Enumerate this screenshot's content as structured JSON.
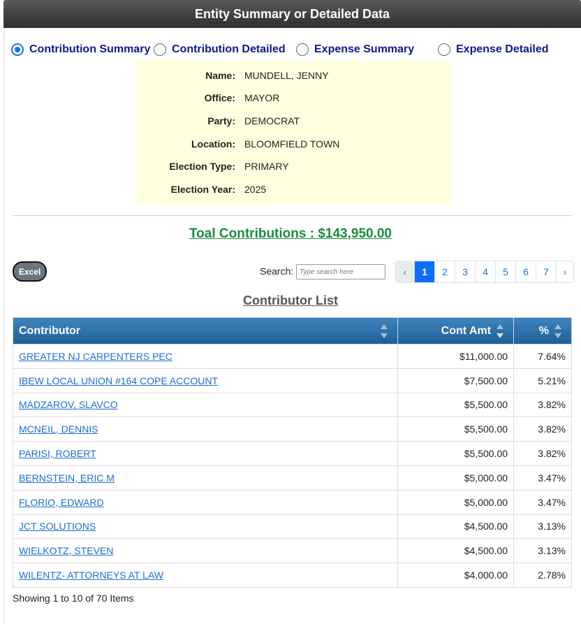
{
  "header": {
    "title": "Entity Summary or Detailed Data"
  },
  "report_types": [
    {
      "label": "Contribution Summary",
      "checked": true
    },
    {
      "label": "Contribution Detailed",
      "checked": false
    },
    {
      "label": "Expense Summary",
      "checked": false
    },
    {
      "label": "Expense Detailed",
      "checked": false
    }
  ],
  "entity": {
    "name_label": "Name:",
    "name": "MUNDELL, JENNY",
    "office_label": "Office:",
    "office": "MAYOR",
    "party_label": "Party:",
    "party": "DEMOCRAT",
    "location_label": "Location:",
    "location": "BLOOMFIELD TOWN",
    "election_type_label": "Election Type:",
    "election_type": "PRIMARY",
    "election_year_label": "Election Year:",
    "election_year": "2025"
  },
  "total": {
    "text": "Toal Contributions : $143,950.00"
  },
  "toolbar": {
    "excel_label": "Excel",
    "search_label": "Search:",
    "search_placeholder": "Type search here",
    "search_value": ""
  },
  "pagination": {
    "prev": "‹",
    "next": "›",
    "pages": [
      "1",
      "2",
      "3",
      "4",
      "5",
      "6",
      "7"
    ],
    "active": "1"
  },
  "list_title": "Contributor List",
  "table": {
    "columns": [
      "Contributor",
      "Cont Amt",
      "%"
    ],
    "rows": [
      {
        "contributor": "GREATER NJ CARPENTERS PEC",
        "amount": "$11,000.00",
        "pct": "7.64%"
      },
      {
        "contributor": "IBEW LOCAL UNION #164 COPE ACCOUNT",
        "amount": "$7,500.00",
        "pct": "5.21%"
      },
      {
        "contributor": "MADZAROV, SLAVCO",
        "amount": "$5,500.00",
        "pct": "3.82%"
      },
      {
        "contributor": "MCNEIL, DENNIS",
        "amount": "$5,500.00",
        "pct": "3.82%"
      },
      {
        "contributor": "PARISI, ROBERT",
        "amount": "$5,500.00",
        "pct": "3.82%"
      },
      {
        "contributor": "BERNSTEIN, ERIC M",
        "amount": "$5,000.00",
        "pct": "3.47%"
      },
      {
        "contributor": "FLORIO, EDWARD",
        "amount": "$5,000.00",
        "pct": "3.47%"
      },
      {
        "contributor": "JCT SOLUTIONS",
        "amount": "$4,500.00",
        "pct": "3.13%"
      },
      {
        "contributor": "WIELKOTZ, STEVEN",
        "amount": "$4,500.00",
        "pct": "3.13%"
      },
      {
        "contributor": "WILENTZ- ATTORNEYS AT LAW",
        "amount": "$4,000.00",
        "pct": "2.78%"
      }
    ]
  },
  "footer": {
    "showing": "Showing 1 to 10 of 70 Items"
  }
}
